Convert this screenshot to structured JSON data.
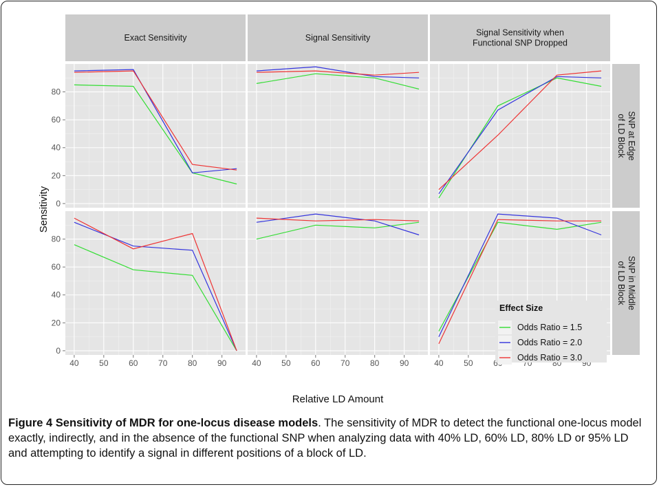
{
  "chart_data": {
    "type": "line",
    "xlabel": "Relative LD Amount",
    "ylabel": "Sensitivity",
    "xlim": [
      37,
      98
    ],
    "ylim": [
      -3,
      100
    ],
    "x_ticks": [
      40,
      50,
      60,
      70,
      80,
      90
    ],
    "y_ticks": [
      0,
      20,
      40,
      60,
      80
    ],
    "x": [
      40,
      60,
      80,
      95
    ],
    "col_labels": [
      [
        "Exact Sensitivity"
      ],
      [
        "Signal Sensitivity"
      ],
      [
        "Signal Sensitivity when",
        "Functional SNP Dropped"
      ]
    ],
    "row_labels": [
      [
        "SNP at Edge",
        "of LD Block"
      ],
      [
        "SNP in Middle",
        "of LD Block"
      ]
    ],
    "legend": {
      "title": "Effect Size",
      "placement": "bottom-right",
      "entries": [
        "Odds Ratio = 1.5",
        "Odds Ratio = 2.0",
        "Odds Ratio = 3.0"
      ]
    },
    "series_colors": [
      "#33dd33",
      "#3333dd",
      "#ee3333"
    ],
    "panels": [
      {
        "row": 0,
        "col": 0,
        "series": [
          [
            85,
            84,
            22,
            14
          ],
          [
            95,
            96,
            22,
            25
          ],
          [
            94,
            95,
            28,
            24
          ]
        ]
      },
      {
        "row": 0,
        "col": 1,
        "series": [
          [
            86,
            93,
            90,
            82
          ],
          [
            95,
            98,
            91,
            90
          ],
          [
            94,
            95,
            92,
            94
          ]
        ]
      },
      {
        "row": 0,
        "col": 2,
        "series": [
          [
            4,
            70,
            90,
            84
          ],
          [
            7,
            67,
            91,
            90
          ],
          [
            10,
            49,
            92,
            95
          ]
        ]
      },
      {
        "row": 1,
        "col": 0,
        "series": [
          [
            76,
            58,
            54,
            0
          ],
          [
            92,
            75,
            72,
            0
          ],
          [
            95,
            73,
            84,
            0
          ]
        ]
      },
      {
        "row": 1,
        "col": 1,
        "series": [
          [
            80,
            90,
            88,
            92
          ],
          [
            92,
            98,
            93,
            83
          ],
          [
            95,
            93,
            94,
            93
          ]
        ]
      },
      {
        "row": 1,
        "col": 2,
        "series": [
          [
            14,
            92,
            87,
            92
          ],
          [
            10,
            98,
            95,
            83
          ],
          [
            5,
            94,
            93,
            93
          ]
        ]
      }
    ]
  },
  "caption": {
    "title": "Figure 4 Sensitivity of MDR for one-locus disease models",
    "text": ". The sensitivity of MDR to detect the functional one-locus model exactly, indirectly, and in the absence of the functional SNP when analyzing data with 40% LD, 60% LD, 80% LD or 95% LD and attempting to identify a signal in different positions of a block of LD."
  }
}
